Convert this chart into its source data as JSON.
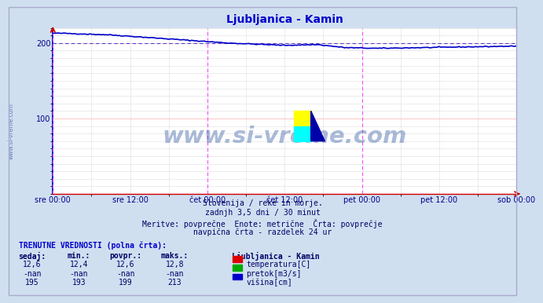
{
  "title": "Ljubljanica - Kamin",
  "bg_color": "#d0dff0",
  "plot_bg_color": "#ffffff",
  "title_color": "#0000cc",
  "axis_color": "#cc0000",
  "grid_color_major": "#ffbbbb",
  "grid_color_minor": "#dddddd",
  "vline_color": "#ff44ff",
  "dashed_hline_color": "#4444cc",
  "dashed_hline_y": 200,
  "ymin": 0,
  "ymax": 220,
  "yticks": [
    100,
    200
  ],
  "x_labels": [
    "sre 00:00",
    "sre 12:00",
    "čet 00:00",
    "čet 12:00",
    "pet 00:00",
    "pet 12:00",
    "sob 00:00"
  ],
  "subtitle_lines": [
    "Slovenija / reke in morje.",
    "zadnjh 3,5 dni / 30 minut",
    "Meritve: povprečne  Enote: metrične  Črta: povprečje",
    "navpična črta - razdelek 24 ur"
  ],
  "watermark_text": "www.si-vreme.com",
  "watermark_color": "#4466aa",
  "watermark_alpha": 0.45,
  "legend_title": "Ljubljanica - Kamin",
  "legend_items": [
    {
      "label": "temperatura[C]",
      "color": "#dd0000"
    },
    {
      "label": "pretok[m3/s]",
      "color": "#00aa00"
    },
    {
      "label": "višina[cm]",
      "color": "#0000cc"
    }
  ],
  "current_label": "TRENUTNE VREDNOSTI (polna črta):",
  "table_headers": [
    "sedaj:",
    "min.:",
    "povpr.:",
    "maks.:"
  ],
  "table_rows": [
    [
      "12,6",
      "12,4",
      "12,6",
      "12,8"
    ],
    [
      "-nan",
      "-nan",
      "-nan",
      "-nan"
    ],
    [
      "195",
      "193",
      "199",
      "213"
    ]
  ],
  "line_color": "#0000cc",
  "line_width": 1.2,
  "n_points": 252,
  "left_label": "www.si-vreme.com"
}
